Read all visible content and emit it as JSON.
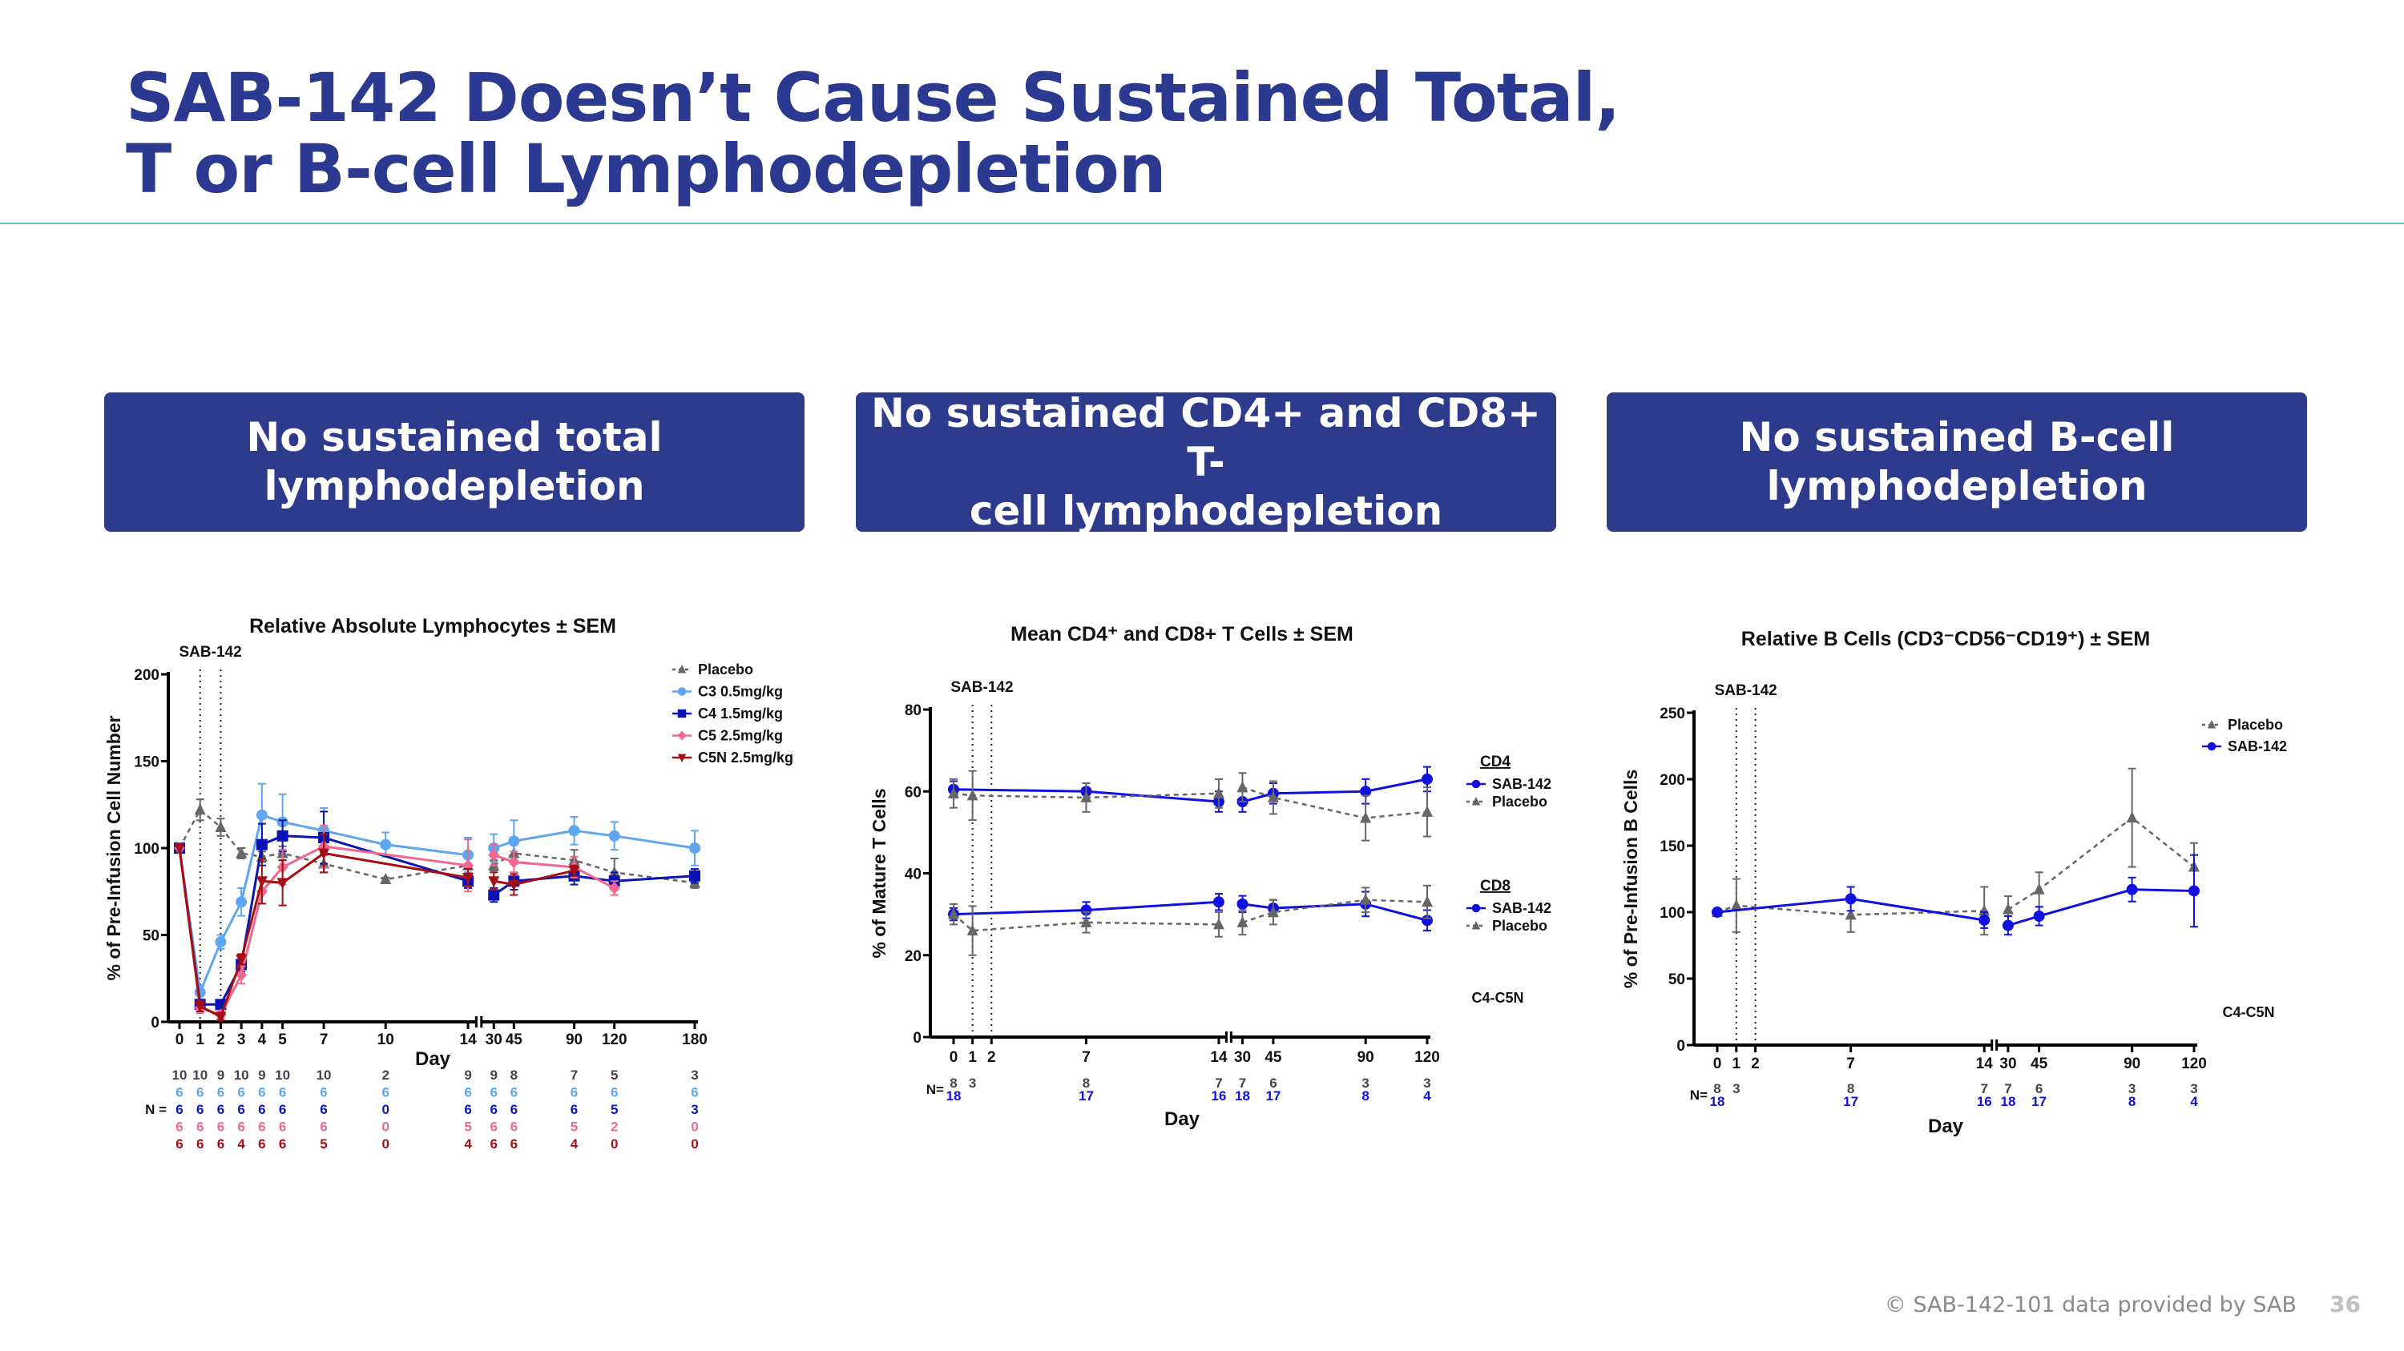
{
  "header": {
    "title_line1": "SAB-142 Doesn’t Cause Sustained Total,",
    "title_line2": "T or B-cell Lymphodepletion"
  },
  "boxes": [
    {
      "line1": "No sustained total",
      "line2": "lymphodepletion"
    },
    {
      "line1": "No sustained CD4+ and CD8+ T-",
      "line2": "cell lymphodepletion"
    },
    {
      "line1": "No sustained B-cell",
      "line2": "lymphodepletion"
    }
  ],
  "footer": {
    "copyright": "© SAB-142-101 data provided by SAB",
    "page": "36"
  },
  "chart_data": [
    {
      "type": "line",
      "title": "Relative Absolute Lymphocytes ± SEM",
      "xlabel": "Day",
      "ylabel": "% of Pre-Infusion Cell Number",
      "ylim": [
        0,
        200
      ],
      "yticks": [
        0,
        50,
        100,
        150,
        200
      ],
      "x_ticks": [
        0,
        1,
        2,
        3,
        4,
        5,
        7,
        10,
        14,
        30,
        45,
        90,
        120,
        180
      ],
      "x_axis_break": [
        14,
        30
      ],
      "dosing_days": [
        1,
        2
      ],
      "dosing_label": "SAB-142",
      "legend_placement": "top-right",
      "n_label": "N =",
      "n_rows": [
        {
          "color": "#444444",
          "days": [
            0,
            1,
            2,
            3,
            4,
            5,
            7,
            10,
            14,
            30,
            45,
            90,
            120,
            180
          ],
          "values": [
            10,
            10,
            9,
            10,
            9,
            10,
            10,
            2,
            9,
            9,
            8,
            7,
            5,
            3
          ]
        },
        {
          "color": "#5ea6f0",
          "days": [
            0,
            1,
            2,
            3,
            4,
            5,
            7,
            10,
            14,
            30,
            45,
            90,
            120,
            180
          ],
          "values": [
            6,
            6,
            6,
            6,
            6,
            6,
            6,
            6,
            6,
            6,
            6,
            6,
            6,
            6
          ]
        },
        {
          "color": "#0a14b4",
          "days": [
            0,
            1,
            2,
            3,
            4,
            5,
            7,
            10,
            14,
            30,
            45,
            90,
            120,
            180
          ],
          "values": [
            6,
            6,
            6,
            6,
            6,
            6,
            6,
            0,
            6,
            6,
            6,
            6,
            5,
            3
          ]
        },
        {
          "color": "#f0688f",
          "days": [
            0,
            1,
            2,
            3,
            4,
            5,
            7,
            10,
            14,
            30,
            45,
            90,
            120,
            180
          ],
          "values": [
            6,
            6,
            6,
            6,
            6,
            6,
            6,
            0,
            5,
            6,
            6,
            5,
            2,
            0
          ]
        },
        {
          "color": "#a50e12",
          "days": [
            0,
            1,
            2,
            3,
            4,
            5,
            7,
            10,
            14,
            30,
            45,
            90,
            120,
            180
          ],
          "values": [
            6,
            6,
            6,
            4,
            6,
            6,
            5,
            0,
            4,
            6,
            6,
            4,
            0,
            0
          ]
        }
      ],
      "series": [
        {
          "name": "Placebo",
          "color": "#666666",
          "marker": "triangle",
          "dashed": true,
          "x": [
            0,
            1,
            2,
            3,
            4,
            5,
            7,
            10,
            14,
            30,
            45,
            90,
            120,
            180
          ],
          "y": [
            100,
            122,
            112,
            97,
            95,
            97,
            91,
            82,
            90,
            90,
            97,
            93,
            86,
            80
          ],
          "err": [
            0,
            6,
            5,
            3,
            3,
            4,
            5,
            1,
            4,
            3,
            6,
            6,
            8,
            3
          ]
        },
        {
          "name": "C3 0.5mg/kg",
          "color": "#5ea6f0",
          "marker": "circle",
          "dashed": false,
          "x": [
            0,
            1,
            2,
            3,
            4,
            5,
            7,
            10,
            14,
            30,
            45,
            90,
            120,
            180
          ],
          "y": [
            100,
            17,
            46,
            69,
            119,
            115,
            110,
            102,
            96,
            100,
            104,
            110,
            107,
            100
          ],
          "err": [
            0,
            4,
            4,
            8,
            18,
            16,
            13,
            7,
            10,
            8,
            12,
            8,
            8,
            10
          ]
        },
        {
          "name": "C4 1.5mg/kg",
          "color": "#0a14b4",
          "marker": "square",
          "dashed": false,
          "x": [
            0,
            1,
            2,
            3,
            4,
            5,
            7,
            14,
            30,
            45,
            90,
            120,
            180
          ],
          "y": [
            100,
            10,
            10,
            33,
            102,
            107,
            106,
            81,
            73,
            81,
            84,
            81,
            84
          ],
          "err": [
            0,
            2,
            2,
            4,
            12,
            9,
            15,
            4,
            4,
            5,
            5,
            5,
            4
          ]
        },
        {
          "name": "C5 2.5mg/kg",
          "color": "#f0688f",
          "marker": "diamond",
          "dashed": false,
          "x": [
            0,
            1,
            2,
            3,
            4,
            5,
            7,
            14,
            30,
            45,
            90,
            120
          ],
          "y": [
            100,
            8,
            4,
            27,
            75,
            89,
            101,
            90,
            96,
            92,
            89,
            77
          ],
          "err": [
            0,
            3,
            2,
            5,
            7,
            10,
            12,
            15,
            6,
            6,
            6,
            4
          ]
        },
        {
          "name": "C5N 2.5mg/kg",
          "color": "#a50e12",
          "marker": "triangle-down",
          "dashed": false,
          "x": [
            0,
            1,
            2,
            3,
            4,
            5,
            7,
            14,
            30,
            45,
            90
          ],
          "y": [
            100,
            9,
            3,
            36,
            81,
            80,
            97,
            83,
            81,
            79,
            87
          ],
          "err": [
            0,
            3,
            2,
            3,
            13,
            13,
            11,
            5,
            5,
            6,
            3
          ]
        }
      ]
    },
    {
      "type": "line",
      "title": "Mean CD4⁺ and CD8+ T Cells ± SEM",
      "xlabel": "Day",
      "ylabel": "% of Mature T Cells",
      "ylim": [
        0,
        80
      ],
      "yticks": [
        0,
        20,
        40,
        60,
        80
      ],
      "x_ticks": [
        0,
        1,
        2,
        7,
        14,
        30,
        45,
        90,
        120
      ],
      "x_axis_break": [
        14,
        30
      ],
      "dosing_days": [
        1,
        2
      ],
      "dosing_label": "SAB-142",
      "legend_placement": "right",
      "footnote": "C4-C5N",
      "legend_groups": [
        "CD4",
        "CD8"
      ],
      "n_label": "N=",
      "n_rows": [
        {
          "color": "#444444",
          "days": [
            0,
            1,
            7,
            14,
            30,
            45,
            90,
            120
          ],
          "values": [
            8,
            3,
            8,
            7,
            7,
            6,
            3,
            3
          ]
        },
        {
          "color": "#1010e0",
          "days": [
            0,
            7,
            14,
            30,
            45,
            90,
            120
          ],
          "values": [
            18,
            17,
            16,
            18,
            17,
            8,
            4
          ]
        }
      ],
      "series": [
        {
          "name": "SAB-142",
          "group": "CD4",
          "color": "#1010e0",
          "marker": "circle",
          "dashed": false,
          "x": [
            0,
            7,
            14,
            30,
            45,
            90,
            120
          ],
          "y": [
            60.5,
            60,
            57.5,
            57.5,
            59.5,
            60,
            63
          ],
          "err": [
            2,
            2,
            2.5,
            2.5,
            2.5,
            3,
            3
          ]
        },
        {
          "name": "Placebo",
          "group": "CD4",
          "color": "#666666",
          "marker": "triangle",
          "dashed": true,
          "x": [
            0,
            1,
            7,
            14,
            30,
            45,
            90,
            120
          ],
          "y": [
            59.5,
            59,
            58.5,
            59.5,
            61,
            58.5,
            53.5,
            55
          ],
          "err": [
            3.5,
            6,
            3.5,
            3.5,
            3.5,
            4,
            5.5,
            6
          ]
        },
        {
          "name": "SAB-142",
          "group": "CD8",
          "color": "#1010e0",
          "marker": "circle",
          "dashed": false,
          "x": [
            0,
            7,
            14,
            30,
            45,
            90,
            120
          ],
          "y": [
            30,
            31,
            33,
            32.5,
            31.5,
            32.5,
            28.5
          ],
          "err": [
            1.5,
            2,
            2,
            2,
            2,
            3,
            2.5
          ]
        },
        {
          "name": "Placebo",
          "group": "CD8",
          "color": "#666666",
          "marker": "triangle",
          "dashed": true,
          "x": [
            0,
            1,
            7,
            14,
            30,
            45,
            90,
            120
          ],
          "y": [
            30,
            26,
            28,
            27.5,
            28,
            30.5,
            33.5,
            33
          ],
          "err": [
            2.5,
            6,
            2.5,
            3,
            3,
            3,
            3,
            4
          ]
        }
      ]
    },
    {
      "type": "line",
      "title": "Relative B Cells (CD3⁻CD56⁻CD19⁺) ± SEM",
      "xlabel": "Day",
      "ylabel": "% of Pre-Infusion B Cells",
      "ylim": [
        0,
        250
      ],
      "yticks": [
        0,
        50,
        100,
        150,
        200,
        250
      ],
      "x_ticks": [
        0,
        1,
        2,
        7,
        14,
        30,
        45,
        90,
        120
      ],
      "x_axis_break": [
        14,
        30
      ],
      "dosing_days": [
        1,
        2
      ],
      "dosing_label": "SAB-142",
      "legend_placement": "top-right",
      "footnote": "C4-C5N",
      "n_label": "N=",
      "n_rows": [
        {
          "color": "#444444",
          "days": [
            0,
            1,
            7,
            14,
            30,
            45,
            90,
            120
          ],
          "values": [
            8,
            3,
            8,
            7,
            7,
            6,
            3,
            3
          ]
        },
        {
          "color": "#1010e0",
          "days": [
            0,
            7,
            14,
            30,
            45,
            90,
            120
          ],
          "values": [
            18,
            17,
            16,
            18,
            17,
            8,
            4
          ]
        }
      ],
      "series": [
        {
          "name": "Placebo",
          "color": "#666666",
          "marker": "triangle",
          "dashed": true,
          "x": [
            0,
            1,
            7,
            14,
            30,
            45,
            90,
            120
          ],
          "y": [
            100,
            105,
            98,
            101,
            102,
            117,
            171,
            134
          ],
          "err": [
            2,
            20,
            13,
            18,
            10,
            13,
            37,
            18
          ]
        },
        {
          "name": "SAB-142",
          "color": "#1010e0",
          "marker": "circle",
          "dashed": false,
          "x": [
            0,
            7,
            14,
            30,
            45,
            90,
            120
          ],
          "y": [
            100,
            110,
            94,
            90,
            97,
            117,
            116
          ],
          "err": [
            2,
            9,
            6,
            7,
            7,
            9,
            27
          ]
        }
      ]
    }
  ]
}
